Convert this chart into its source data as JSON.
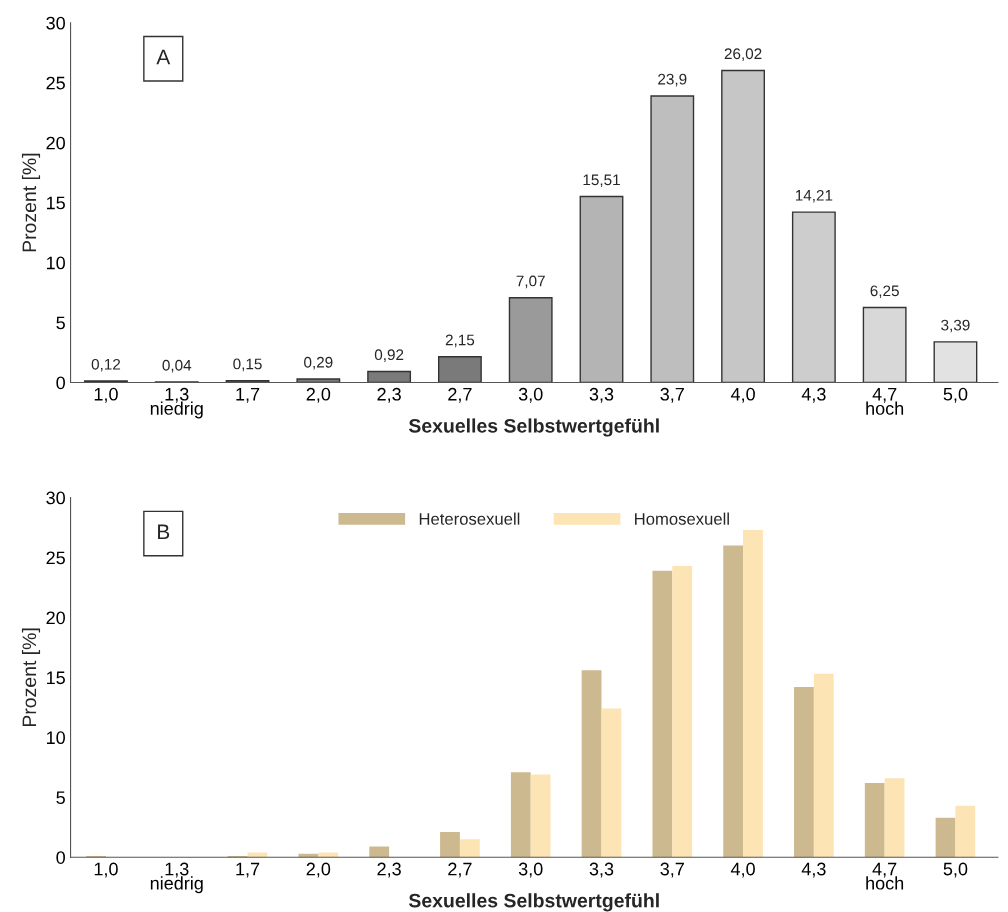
{
  "chart_data": [
    {
      "type": "bar",
      "xlabel": "Sexuelles Selbstwertgefühl",
      "ylabel": "Prozent [%]",
      "annotations": [
        "A"
      ],
      "categories": [
        "1,0",
        "1,3\nniedrig",
        "1,7",
        "2,0",
        "2,3",
        "2,7",
        "3,0",
        "3,3",
        "3,7",
        "4,0",
        "4,3",
        "4,7\nhoch",
        "5,0"
      ],
      "values": [
        0.12,
        0.04,
        0.15,
        0.29,
        0.92,
        2.15,
        7.07,
        15.51,
        23.9,
        26.02,
        14.21,
        6.25,
        3.39
      ],
      "value_labels": [
        "0,12",
        "0,04",
        "0,15",
        "0,29",
        "0,92",
        "2,15",
        "7,07",
        "15,51",
        "23,9",
        "26,02",
        "14,21",
        "6,25",
        "3,39"
      ],
      "colors": [
        "#7a7a7a",
        "#7a7a7a",
        "#7a7a7a",
        "#7a7a7a",
        "#7a7a7a",
        "#7a7a7a",
        "#9a9a9a",
        "#b4b4b4",
        "#bebebe",
        "#c6c6c6",
        "#cdcdcd",
        "#d8d8d8",
        "#e2e2e2"
      ],
      "ylim": [
        0,
        30
      ],
      "yticks": [
        0,
        5,
        10,
        15,
        20,
        25,
        30
      ],
      "grid": false,
      "legend": false
    },
    {
      "type": "bar",
      "xlabel": "Sexuelles Selbstwertgefühl",
      "ylabel": "Prozent [%]",
      "annotations": [
        "B"
      ],
      "categories": [
        "1,0",
        "1,3\nniedrig",
        "1,7",
        "2,0",
        "2,3",
        "2,7",
        "3,0",
        "3,3",
        "3,7",
        "4,0",
        "4,3",
        "4,7\nhoch",
        "5,0"
      ],
      "series": [
        {
          "name": "Heterosexuell",
          "color": "#cdb990",
          "values": [
            0.1,
            0,
            0.1,
            0.3,
            0.9,
            2.1,
            7.1,
            15.6,
            23.9,
            26.0,
            14.2,
            6.2,
            3.3
          ]
        },
        {
          "name": "Homosexuell",
          "color": "#fde4b4",
          "values": [
            0,
            null,
            0.4,
            0.4,
            0,
            1.5,
            6.9,
            12.4,
            24.3,
            27.3,
            15.3,
            6.6,
            4.3
          ]
        }
      ],
      "ylim": [
        0,
        30
      ],
      "yticks": [
        0,
        5,
        10,
        15,
        20,
        25,
        30
      ],
      "grid": false,
      "legend": "top"
    }
  ]
}
